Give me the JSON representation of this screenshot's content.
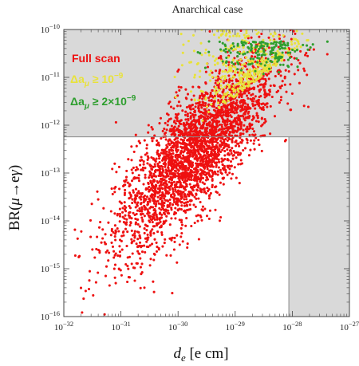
{
  "chart_data": {
    "type": "scatter",
    "title": "Anarchical case",
    "xlabel": "d_e [e cm]",
    "ylabel": "BR(μ→eγ)",
    "x_scale": "log",
    "y_scale": "log",
    "xlim": [
      1e-32,
      1e-27
    ],
    "ylim": [
      1e-16,
      1e-10
    ],
    "x_ticks": [
      "10^-32",
      "10^-31",
      "10^-30",
      "10^-29",
      "10^-28",
      "10^-27"
    ],
    "y_ticks": [
      "10^-16",
      "10^-15",
      "10^-14",
      "10^-13",
      "10^-12",
      "10^-11",
      "10^-10"
    ],
    "grid": false,
    "legend_position": "top-left",
    "excluded_regions": [
      {
        "quantity": "BR",
        "lower_bound": 5.7e-13,
        "fill": "#d9d9d9"
      },
      {
        "quantity": "d_e",
        "lower_bound": 8.7e-29,
        "fill": "#d9d9d9"
      }
    ],
    "series": [
      {
        "name": "Full scan",
        "color": "#ee1111",
        "description_band": "points spread around log10 BR ≈ 1.2·log10 d_e + 22.5 ± 1",
        "center": [
          {
            "x": 1e-31,
            "y": 3e-16
          },
          {
            "x": 1e-30,
            "y": 2e-14
          },
          {
            "x": 1e-29,
            "y": 3e-13
          },
          {
            "x": 1e-28,
            "y": 5e-12
          },
          {
            "x": 1e-27,
            "y": 6e-11
          }
        ]
      },
      {
        "name": "Δa_μ ≥ 10^-9",
        "color": "#e8e23a",
        "center": [
          {
            "x": 1e-29,
            "y": 3e-12
          },
          {
            "x": 1e-28,
            "y": 3e-11
          },
          {
            "x": 5e-28,
            "y": 8e-11
          }
        ]
      },
      {
        "name": "Δa_μ ≥ 2×10^-9",
        "color": "#2e9e2e",
        "center": [
          {
            "x": 1e-29,
            "y": 6e-11
          },
          {
            "x": 1e-28,
            "y": 9e-11
          },
          {
            "x": 5e-28,
            "y": 1e-10
          }
        ]
      }
    ],
    "legend": [
      {
        "label": "Full scan",
        "color": "#ee1111"
      },
      {
        "label_main": "Δa",
        "label_sub": "μ",
        "label_rest": " ≥ 10",
        "label_exp": "−9",
        "color": "#e8e23a"
      },
      {
        "label_main": "Δa",
        "label_sub": "μ",
        "label_rest": " ≥ 2×10",
        "label_exp": "−9",
        "color": "#2e9e2e"
      }
    ]
  }
}
